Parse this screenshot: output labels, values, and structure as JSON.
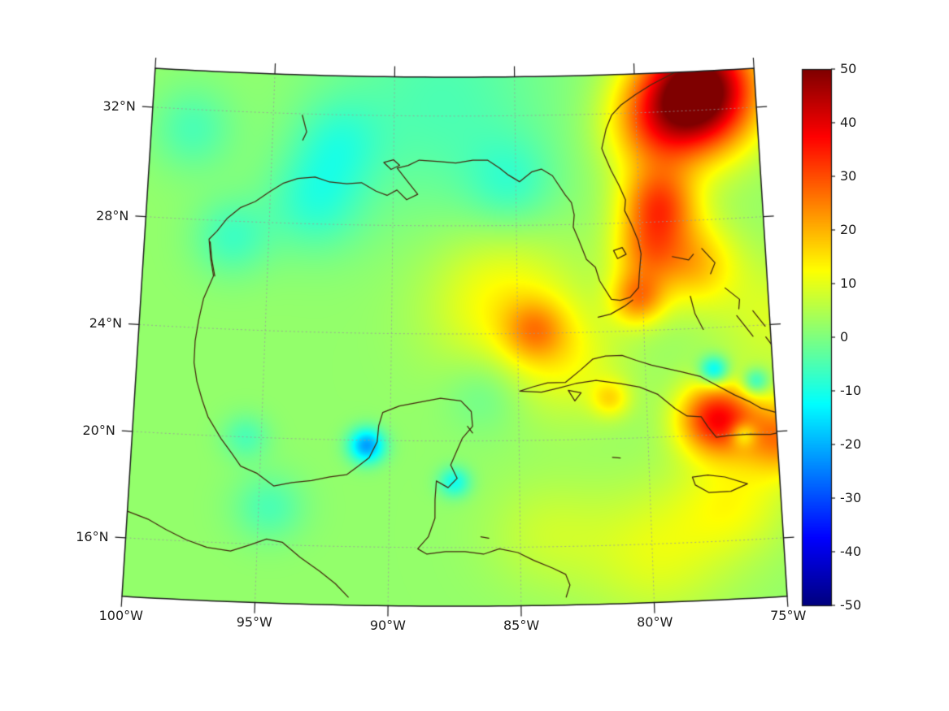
{
  "chart_data": {
    "type": "heatmap",
    "title": "",
    "xlabel": "",
    "ylabel": "",
    "projection": {
      "name": "lambert-conformal-conic",
      "n": 0.28,
      "lon0": -87.5,
      "lon_range": [
        -100,
        -75
      ],
      "lat_range": [
        13.8,
        33.4
      ]
    },
    "x_ticks": [
      {
        "lon": -100,
        "label": "100°W"
      },
      {
        "lon": -95,
        "label": "95°W"
      },
      {
        "lon": -90,
        "label": "90°W"
      },
      {
        "lon": -85,
        "label": "85°W"
      },
      {
        "lon": -80,
        "label": "80°W"
      },
      {
        "lon": -75,
        "label": "75°W"
      }
    ],
    "y_ticks": [
      {
        "lat": 32,
        "label": "32°N"
      },
      {
        "lat": 28,
        "label": "28°N"
      },
      {
        "lat": 24,
        "label": "24°N"
      },
      {
        "lat": 20,
        "label": "20°N"
      },
      {
        "lat": 16,
        "label": "16°N"
      }
    ],
    "grid": {
      "meridians": [
        -95,
        -90,
        -85,
        -80
      ],
      "parallels": [
        16,
        20,
        24,
        28,
        32
      ],
      "style": "dashed"
    },
    "colorbar": {
      "min": -50,
      "max": 50,
      "colormap": "jet",
      "ticks": [
        {
          "value": 50,
          "label": "50"
        },
        {
          "value": 40,
          "label": "40"
        },
        {
          "value": 30,
          "label": "30"
        },
        {
          "value": 20,
          "label": "20"
        },
        {
          "value": 10,
          "label": "10"
        },
        {
          "value": 0,
          "label": "0"
        },
        {
          "value": -10,
          "label": "-10"
        },
        {
          "value": -20,
          "label": "-20"
        },
        {
          "value": -30,
          "label": "-30"
        },
        {
          "value": -40,
          "label": "-40"
        },
        {
          "value": -50,
          "label": "-50"
        }
      ]
    },
    "field": {
      "base": 2,
      "blobs": [
        [
          -88.0,
          32.5,
          -7,
          3.0
        ],
        [
          -93.2,
          28.8,
          -9,
          1.3
        ],
        [
          -92.3,
          31.0,
          -7,
          1.2
        ],
        [
          -96.5,
          27.4,
          -8,
          1.0
        ],
        [
          -98.3,
          31.3,
          -7,
          1.1
        ],
        [
          -85.2,
          29.5,
          -7,
          1.2
        ],
        [
          -86.3,
          21.8,
          -5,
          1.0
        ],
        [
          -94.6,
          17.4,
          -7,
          0.9
        ],
        [
          -95.6,
          20.0,
          -7,
          0.6
        ],
        [
          -85.6,
          25.2,
          11,
          1.9
        ],
        [
          -84.3,
          24.1,
          13,
          0.8
        ],
        [
          -83.0,
          22.9,
          8,
          1.5
        ],
        [
          -79.2,
          28.6,
          26,
          1.0
        ],
        [
          -79.8,
          26.9,
          16,
          0.9
        ],
        [
          -80.2,
          25.2,
          20,
          0.7
        ],
        [
          -77.9,
          26.4,
          16,
          1.1
        ],
        [
          -77.3,
          32.7,
          55,
          1.5
        ],
        [
          -79.3,
          31.5,
          18,
          1.3
        ],
        [
          -77.3,
          20.6,
          34,
          0.95
        ],
        [
          -74.8,
          19.8,
          22,
          1.0
        ],
        [
          -81.4,
          21.5,
          11,
          0.5
        ],
        [
          -76.8,
          17.5,
          9,
          1.4
        ],
        [
          -79.8,
          15.7,
          8,
          1.8
        ],
        [
          -74.8,
          24.3,
          7,
          1.6
        ],
        [
          -84.0,
          16.5,
          5,
          1.5
        ],
        [
          -90.9,
          19.8,
          -24,
          0.45
        ],
        [
          -87.5,
          18.45,
          -13,
          0.4
        ],
        [
          -77.3,
          22.4,
          -20,
          0.38
        ],
        [
          -75.7,
          21.9,
          -15,
          0.35
        ],
        [
          -76.3,
          19.95,
          -14,
          0.33
        ]
      ]
    },
    "coastlines": [
      [
        [
          -97.15,
          25.95
        ],
        [
          -97.3,
          26.6
        ],
        [
          -97.4,
          27.3
        ],
        [
          -97.1,
          27.6
        ],
        [
          -96.7,
          28.1
        ],
        [
          -96.2,
          28.5
        ],
        [
          -95.6,
          28.75
        ],
        [
          -95.0,
          29.15
        ],
        [
          -94.5,
          29.45
        ],
        [
          -93.9,
          29.65
        ],
        [
          -93.2,
          29.72
        ],
        [
          -92.6,
          29.55
        ],
        [
          -91.9,
          29.5
        ],
        [
          -91.3,
          29.55
        ],
        [
          -90.7,
          29.25
        ],
        [
          -90.25,
          29.1
        ],
        [
          -89.85,
          29.3
        ],
        [
          -89.45,
          28.95
        ],
        [
          -89.0,
          29.15
        ],
        [
          -89.45,
          29.65
        ],
        [
          -89.85,
          30.1
        ],
        [
          -89.4,
          30.2
        ],
        [
          -88.95,
          30.4
        ],
        [
          -88.1,
          30.35
        ],
        [
          -87.45,
          30.3
        ],
        [
          -86.75,
          30.4
        ],
        [
          -86.15,
          30.4
        ],
        [
          -85.65,
          30.1
        ],
        [
          -85.3,
          29.85
        ],
        [
          -84.85,
          29.6
        ],
        [
          -84.35,
          29.95
        ],
        [
          -83.95,
          30.05
        ],
        [
          -83.5,
          29.8
        ],
        [
          -83.0,
          29.1
        ],
        [
          -82.75,
          28.8
        ],
        [
          -82.65,
          28.35
        ],
        [
          -82.7,
          27.9
        ],
        [
          -82.5,
          27.45
        ],
        [
          -82.2,
          26.7
        ],
        [
          -81.85,
          26.4
        ],
        [
          -81.7,
          25.9
        ],
        [
          -81.25,
          25.2
        ],
        [
          -80.9,
          25.15
        ],
        [
          -80.5,
          25.25
        ],
        [
          -80.15,
          25.6
        ],
        [
          -80.1,
          26.1
        ],
        [
          -80.0,
          26.85
        ],
        [
          -80.1,
          27.35
        ],
        [
          -80.35,
          27.95
        ],
        [
          -80.6,
          28.45
        ],
        [
          -80.55,
          28.85
        ],
        [
          -80.8,
          29.4
        ],
        [
          -81.1,
          29.95
        ],
        [
          -81.35,
          30.5
        ],
        [
          -81.45,
          30.75
        ],
        [
          -81.25,
          31.45
        ],
        [
          -81.0,
          31.95
        ],
        [
          -80.6,
          32.3
        ],
        [
          -80.0,
          32.65
        ],
        [
          -79.3,
          33.0
        ],
        [
          -78.55,
          33.3
        ],
        [
          -78.2,
          33.45
        ]
      ],
      [
        [
          -97.15,
          25.95
        ],
        [
          -97.5,
          25.1
        ],
        [
          -97.65,
          24.3
        ],
        [
          -97.75,
          23.5
        ],
        [
          -97.75,
          22.7
        ],
        [
          -97.6,
          22.0
        ],
        [
          -97.35,
          21.3
        ],
        [
          -97.1,
          20.7
        ],
        [
          -96.55,
          19.9
        ],
        [
          -96.1,
          19.35
        ],
        [
          -95.75,
          18.9
        ],
        [
          -95.1,
          18.65
        ],
        [
          -94.45,
          18.2
        ],
        [
          -93.75,
          18.35
        ],
        [
          -93.0,
          18.45
        ],
        [
          -92.3,
          18.6
        ],
        [
          -91.65,
          18.7
        ],
        [
          -91.25,
          19.0
        ],
        [
          -90.8,
          19.35
        ],
        [
          -90.5,
          19.95
        ],
        [
          -90.45,
          20.55
        ],
        [
          -90.3,
          21.05
        ],
        [
          -89.65,
          21.3
        ],
        [
          -88.85,
          21.45
        ],
        [
          -88.05,
          21.6
        ],
        [
          -87.25,
          21.5
        ],
        [
          -86.85,
          21.1
        ],
        [
          -86.8,
          20.55
        ],
        [
          -87.2,
          20.1
        ],
        [
          -87.45,
          19.55
        ],
        [
          -87.65,
          19.1
        ],
        [
          -87.4,
          18.6
        ],
        [
          -87.75,
          18.25
        ],
        [
          -88.2,
          18.5
        ],
        [
          -88.25,
          17.8
        ],
        [
          -88.25,
          17.1
        ],
        [
          -88.5,
          16.4
        ],
        [
          -88.9,
          15.95
        ],
        [
          -88.55,
          15.75
        ],
        [
          -87.85,
          15.85
        ],
        [
          -87.1,
          15.85
        ],
        [
          -86.4,
          15.75
        ],
        [
          -85.8,
          15.95
        ],
        [
          -85.1,
          15.8
        ],
        [
          -84.5,
          15.5
        ],
        [
          -83.8,
          15.2
        ],
        [
          -83.3,
          14.95
        ],
        [
          -83.15,
          14.55
        ],
        [
          -83.3,
          14.1
        ]
      ],
      [
        [
          -100.0,
          17.0
        ],
        [
          -99.2,
          16.75
        ],
        [
          -98.5,
          16.4
        ],
        [
          -97.7,
          16.05
        ],
        [
          -96.9,
          15.8
        ],
        [
          -96.0,
          15.7
        ],
        [
          -95.3,
          15.95
        ],
        [
          -94.65,
          16.2
        ],
        [
          -94.05,
          16.1
        ],
        [
          -93.35,
          15.55
        ],
        [
          -92.6,
          15.05
        ],
        [
          -92.0,
          14.6
        ],
        [
          -91.5,
          14.1
        ]
      ],
      [
        [
          -84.95,
          21.85
        ],
        [
          -84.45,
          22.0
        ],
        [
          -83.85,
          22.15
        ],
        [
          -83.15,
          22.15
        ],
        [
          -82.55,
          22.6
        ],
        [
          -82.05,
          23.0
        ],
        [
          -81.55,
          23.1
        ],
        [
          -80.9,
          23.1
        ],
        [
          -80.35,
          22.9
        ],
        [
          -79.75,
          22.7
        ],
        [
          -79.15,
          22.55
        ],
        [
          -78.55,
          22.4
        ],
        [
          -77.85,
          22.2
        ],
        [
          -77.25,
          21.85
        ],
        [
          -76.55,
          21.45
        ],
        [
          -75.95,
          21.15
        ],
        [
          -75.55,
          20.9
        ],
        [
          -74.95,
          20.7
        ],
        [
          -74.35,
          20.35
        ],
        [
          -74.15,
          20.15
        ],
        [
          -74.65,
          20.0
        ],
        [
          -75.25,
          19.9
        ],
        [
          -76.05,
          19.95
        ],
        [
          -76.85,
          19.95
        ],
        [
          -77.35,
          19.9
        ],
        [
          -77.65,
          20.3
        ],
        [
          -77.9,
          20.7
        ],
        [
          -78.45,
          20.75
        ],
        [
          -78.9,
          21.05
        ],
        [
          -79.55,
          21.6
        ],
        [
          -80.25,
          21.9
        ],
        [
          -81.0,
          22.05
        ],
        [
          -81.95,
          22.2
        ],
        [
          -82.75,
          22.1
        ],
        [
          -83.4,
          21.95
        ],
        [
          -84.1,
          21.8
        ],
        [
          -84.95,
          21.85
        ]
      ],
      [
        [
          -83.05,
          21.85
        ],
        [
          -82.55,
          21.75
        ],
        [
          -82.8,
          21.45
        ],
        [
          -83.05,
          21.85
        ]
      ],
      [
        [
          -78.35,
          18.45
        ],
        [
          -77.75,
          18.5
        ],
        [
          -77.1,
          18.4
        ],
        [
          -76.25,
          18.1
        ],
        [
          -76.9,
          17.85
        ],
        [
          -77.75,
          17.85
        ],
        [
          -78.25,
          18.15
        ],
        [
          -78.35,
          18.45
        ]
      ],
      [
        [
          -81.4,
          19.3
        ],
        [
          -81.1,
          19.27
        ]
      ],
      [
        [
          -87.0,
          20.55
        ],
        [
          -86.8,
          20.3
        ]
      ],
      [
        [
          -80.4,
          25.15
        ],
        [
          -80.7,
          24.95
        ],
        [
          -81.3,
          24.65
        ],
        [
          -81.8,
          24.55
        ]
      ],
      [
        [
          -78.75,
          26.7
        ],
        [
          -78.1,
          26.55
        ],
        [
          -77.9,
          26.75
        ]
      ],
      [
        [
          -77.55,
          26.95
        ],
        [
          -77.05,
          26.4
        ],
        [
          -77.25,
          26.0
        ]
      ],
      [
        [
          -78.1,
          25.2
        ],
        [
          -77.95,
          24.55
        ],
        [
          -77.65,
          23.95
        ]
      ],
      [
        [
          -76.7,
          25.45
        ],
        [
          -76.15,
          25.0
        ],
        [
          -76.2,
          24.65
        ]
      ],
      [
        [
          -75.65,
          24.55
        ],
        [
          -75.2,
          23.95
        ]
      ],
      [
        [
          -75.2,
          23.55
        ],
        [
          -74.85,
          23.05
        ]
      ],
      [
        [
          -76.3,
          24.4
        ],
        [
          -75.7,
          23.6
        ]
      ],
      [
        [
          -81.1,
          27.0
        ],
        [
          -80.75,
          27.1
        ],
        [
          -80.6,
          26.85
        ],
        [
          -80.95,
          26.7
        ],
        [
          -81.1,
          27.0
        ]
      ],
      [
        [
          -90.4,
          30.3
        ],
        [
          -90.0,
          30.4
        ],
        [
          -89.75,
          30.2
        ],
        [
          -90.1,
          30.05
        ],
        [
          -90.4,
          30.3
        ]
      ],
      [
        [
          -93.8,
          31.95
        ],
        [
          -93.6,
          31.35
        ],
        [
          -93.75,
          31.05
        ]
      ],
      [
        [
          -97.35,
          27.2
        ],
        [
          -97.25,
          26.55
        ],
        [
          -97.1,
          25.95
        ]
      ],
      [
        [
          -86.5,
          16.4
        ],
        [
          -86.2,
          16.35
        ]
      ]
    ]
  },
  "style": {
    "background": "#ffffff",
    "frame_color": "#1c1c1c",
    "grid_color": "#9a9a9a",
    "coast_color": "#43280e",
    "label_color": "#1c1c1c"
  }
}
